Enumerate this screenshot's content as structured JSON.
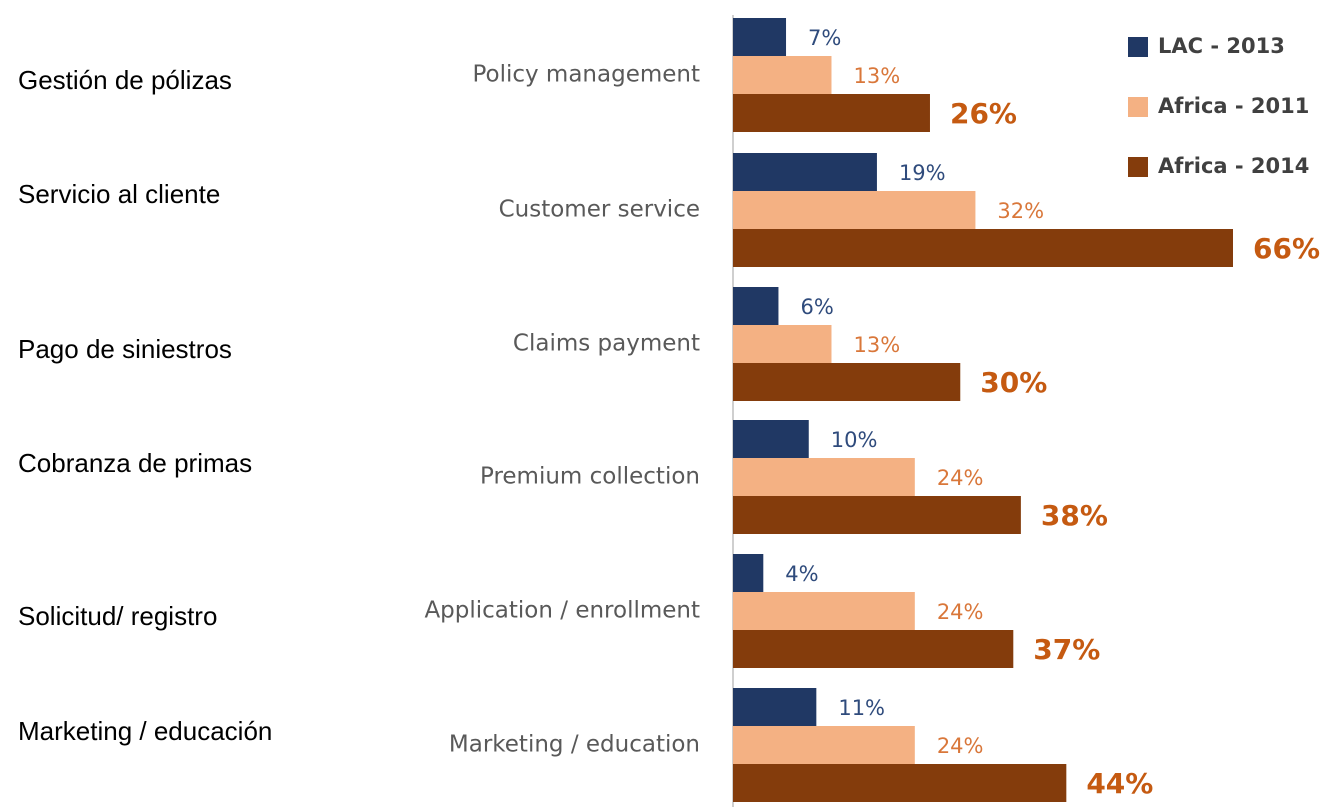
{
  "chart_data": {
    "type": "bar",
    "orientation": "horizontal",
    "categories": [
      "Policy management",
      "Customer service",
      "Claims payment",
      "Premium collection",
      "Application / enrollment",
      "Marketing / education"
    ],
    "translations": [
      "Gestión de pólizas",
      "Servicio al cliente",
      "Pago de siniestros",
      "Cobranza de primas",
      "Solicitud/ registro",
      "Marketing / educación"
    ],
    "series": [
      {
        "name": "LAC - 2013",
        "color": "#203864",
        "label_color": "#2f4b7c",
        "values": [
          7,
          19,
          6,
          10,
          4,
          11
        ],
        "value_labels": [
          "7%",
          "19%",
          "6%",
          "10%",
          "4%",
          "11%"
        ]
      },
      {
        "name": "Africa - 2011",
        "color": "#f4b183",
        "label_color": "#d9773a",
        "values": [
          13,
          32,
          13,
          24,
          24,
          24
        ],
        "value_labels": [
          "13%",
          "32%",
          "13%",
          "24%",
          "24%",
          "24%"
        ]
      },
      {
        "name": "Africa - 2014",
        "color": "#843c0c",
        "label_color": "#c55a11",
        "values": [
          26,
          66,
          30,
          38,
          37,
          44
        ],
        "value_labels": [
          "26%",
          "66%",
          "30%",
          "38%",
          "37%",
          "44%"
        ]
      }
    ],
    "legend": "top-right"
  }
}
